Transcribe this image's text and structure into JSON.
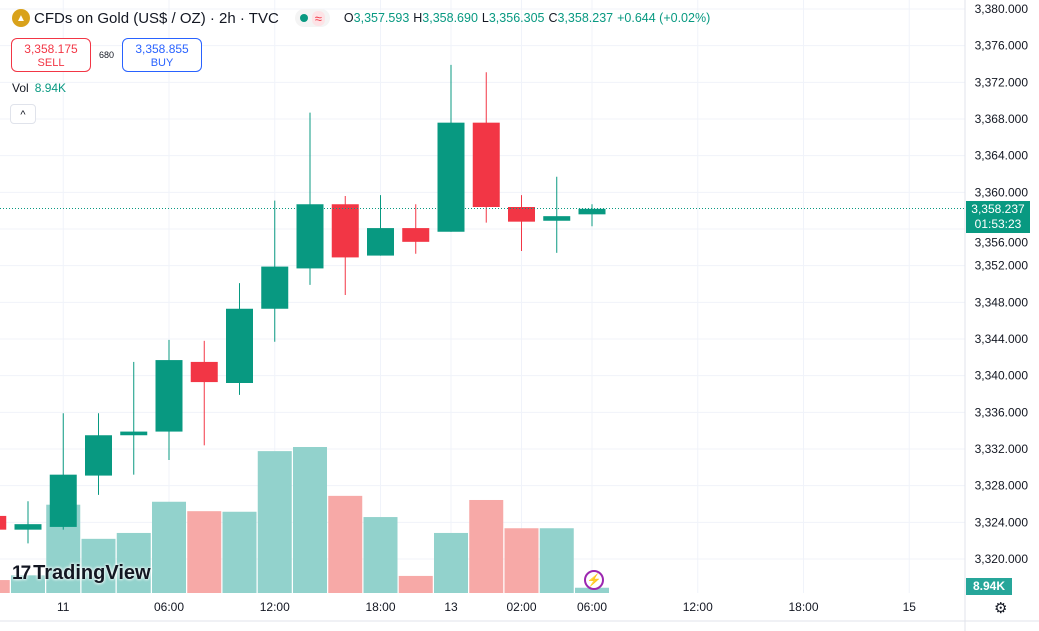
{
  "header": {
    "symbol": "CFDs on Gold (US$ / OZ) · 2h · TVC",
    "logo_icon": "gold-bars-icon",
    "ohlc": {
      "o_label": "O",
      "o": "3,357.593",
      "h_label": "H",
      "h": "3,358.690",
      "l_label": "L",
      "l": "3,356.305",
      "c_label": "C",
      "c": "3,358.237",
      "change": "+0.644 (+0.02%)"
    }
  },
  "trade": {
    "sell_price": "3,358.175",
    "sell_label": "SELL",
    "spread": "680",
    "buy_price": "3,358.855",
    "buy_label": "BUY"
  },
  "volume_legend": {
    "label": "Vol",
    "value": "8.94K"
  },
  "collapse_label": "^",
  "watermark": "TradingView",
  "current_price": {
    "price": "3,358.237",
    "countdown": "01:53:23",
    "value": 3358.237
  },
  "volume_axis_label": "8.94K",
  "colors": {
    "up": "#089981",
    "down": "#f23645",
    "vol_up": "#92d2cc",
    "vol_down": "#f7a9a7"
  },
  "chart_data": {
    "type": "candlestick",
    "ylim": [
      3316,
      3380
    ],
    "price_ticks": [
      "3,380.000",
      "3,376.000",
      "3,372.000",
      "3,368.000",
      "3,364.000",
      "3,360.000",
      "3,356.000",
      "3,352.000",
      "3,348.000",
      "3,344.000",
      "3,340.000",
      "3,336.000",
      "3,332.000",
      "3,328.000",
      "3,324.000",
      "3,320.000"
    ],
    "price_tick_values": [
      3380,
      3376,
      3372,
      3368,
      3364,
      3360,
      3356,
      3352,
      3348,
      3344,
      3340,
      3336,
      3332,
      3328,
      3324,
      3320
    ],
    "time_ticks": [
      {
        "label": "11",
        "index": 1
      },
      {
        "label": "06:00",
        "index": 4
      },
      {
        "label": "12:00",
        "index": 7
      },
      {
        "label": "18:00",
        "index": 10
      },
      {
        "label": "13",
        "index": 12
      },
      {
        "label": "02:00",
        "index": 14
      },
      {
        "label": "06:00",
        "index": 16
      },
      {
        "label": "12:00",
        "index": 19
      },
      {
        "label": "18:00",
        "index": 22
      },
      {
        "label": "15",
        "index": 25
      }
    ],
    "candles": [
      {
        "i": -1,
        "o": 3324.7,
        "h": 3324.7,
        "l": 3323.2,
        "c": 3323.2,
        "v": 22
      },
      {
        "i": 0,
        "o": 3323.2,
        "h": 3326.3,
        "l": 3321.7,
        "c": 3323.8,
        "v": 30
      },
      {
        "i": 1,
        "o": 3323.5,
        "h": 3335.9,
        "l": 3323.2,
        "c": 3329.2,
        "v": 150
      },
      {
        "i": 2,
        "o": 3329.1,
        "h": 3335.9,
        "l": 3327.0,
        "c": 3333.5,
        "v": 92
      },
      {
        "i": 3,
        "o": 3333.5,
        "h": 3341.5,
        "l": 3329.2,
        "c": 3333.9,
        "v": 102
      },
      {
        "i": 4,
        "o": 3333.9,
        "h": 3343.9,
        "l": 3330.8,
        "c": 3341.7,
        "v": 155
      },
      {
        "i": 5,
        "o": 3341.5,
        "h": 3343.8,
        "l": 3332.4,
        "c": 3339.3,
        "v": 139
      },
      {
        "i": 6,
        "o": 3339.2,
        "h": 3350.1,
        "l": 3337.9,
        "c": 3347.3,
        "v": 138
      },
      {
        "i": 7,
        "o": 3347.3,
        "h": 3359.1,
        "l": 3343.7,
        "c": 3351.9,
        "v": 241
      },
      {
        "i": 8,
        "o": 3351.7,
        "h": 3368.7,
        "l": 3349.9,
        "c": 3358.7,
        "v": 248
      },
      {
        "i": 9,
        "o": 3358.7,
        "h": 3359.6,
        "l": 3348.8,
        "c": 3352.9,
        "v": 165
      },
      {
        "i": 10,
        "o": 3353.1,
        "h": 3359.7,
        "l": 3353.1,
        "c": 3356.1,
        "v": 129
      },
      {
        "i": 11,
        "o": 3356.1,
        "h": 3358.7,
        "l": 3353.3,
        "c": 3354.6,
        "v": 29
      },
      {
        "i": 12,
        "o": 3355.7,
        "h": 3373.9,
        "l": 3355.7,
        "c": 3367.6,
        "v": 102
      },
      {
        "i": 13,
        "o": 3367.6,
        "h": 3373.1,
        "l": 3356.7,
        "c": 3358.4,
        "v": 158
      },
      {
        "i": 14,
        "o": 3358.4,
        "h": 3359.7,
        "l": 3353.6,
        "c": 3356.8,
        "v": 110
      },
      {
        "i": 15,
        "o": 3356.9,
        "h": 3361.7,
        "l": 3353.4,
        "c": 3357.4,
        "v": 110
      },
      {
        "i": 16,
        "o": 3357.6,
        "h": 3358.7,
        "l": 3356.3,
        "c": 3358.2,
        "v": 8.94
      }
    ]
  }
}
